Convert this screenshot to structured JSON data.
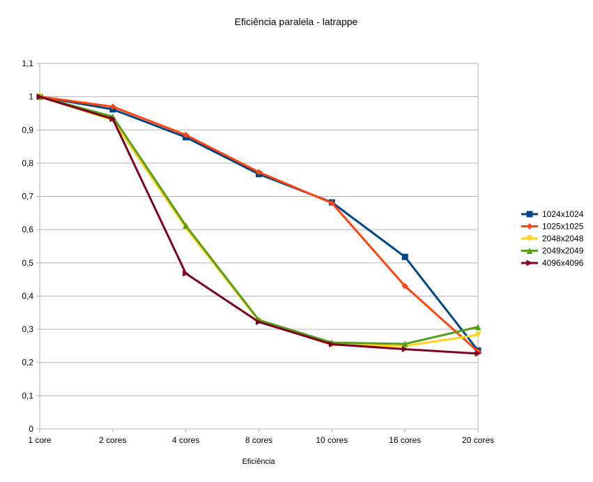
{
  "chart_data": {
    "type": "line",
    "title": "Eficiência paralela - latrappe",
    "xlabel": "Eficiência",
    "ylabel": "",
    "categories": [
      "1 core",
      "2 cores",
      "4 cores",
      "8 cores",
      "10 cores",
      "16 cores",
      "20 cores"
    ],
    "ylim": [
      0,
      1.1
    ],
    "yticks": [
      "0",
      "0,1",
      "0,2",
      "0,3",
      "0,4",
      "0,5",
      "0,6",
      "0,7",
      "0,8",
      "0,9",
      "1",
      "1,1"
    ],
    "grid": true,
    "legend_position": "right",
    "series": [
      {
        "name": "1024x1024",
        "color": "#004586",
        "marker": "square",
        "values": [
          1.0,
          0.962,
          0.878,
          0.767,
          0.682,
          0.518,
          0.236
        ]
      },
      {
        "name": "1025x1025",
        "color": "#ff420e",
        "marker": "diamond",
        "values": [
          1.0,
          0.97,
          0.885,
          0.773,
          0.68,
          0.43,
          0.233
        ]
      },
      {
        "name": "2048x2048",
        "color": "#ffd320",
        "marker": "triangle-down",
        "values": [
          1.0,
          0.93,
          0.605,
          0.325,
          0.253,
          0.25,
          0.283
        ]
      },
      {
        "name": "2049x2049",
        "color": "#579d1c",
        "marker": "triangle-up",
        "values": [
          1.0,
          0.94,
          0.612,
          0.328,
          0.26,
          0.256,
          0.307
        ]
      },
      {
        "name": "4096x4096",
        "color": "#7e0021",
        "marker": "triangle-right",
        "values": [
          1.0,
          0.933,
          0.468,
          0.322,
          0.255,
          0.24,
          0.227
        ]
      }
    ]
  }
}
